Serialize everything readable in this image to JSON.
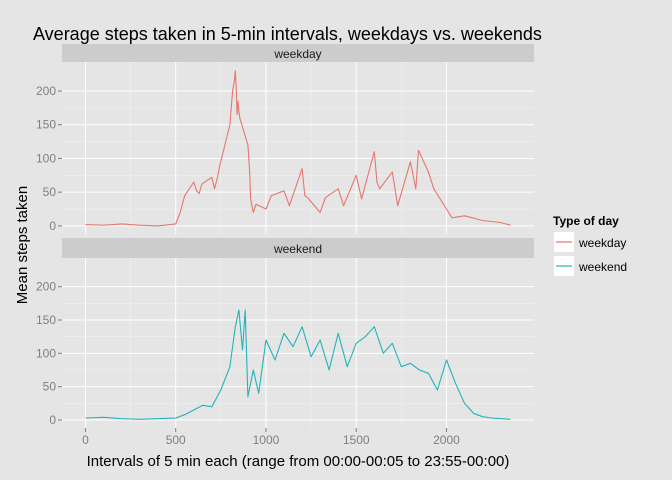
{
  "chart_data": {
    "type": "line",
    "title": "Average steps taken in 5-min intervals, weekdays vs. weekends",
    "xlabel": "Intervals of 5 min each (range from 00:00-00:05 to 23:55-00:00)",
    "ylabel": "Mean steps taken",
    "xlim": [
      -130,
      2485
    ],
    "ylim": [
      -12,
      243
    ],
    "x_ticks": [
      0,
      500,
      1000,
      1500,
      2000
    ],
    "x_tick_labels": [
      "0",
      "500",
      "1000",
      "1500",
      "2000"
    ],
    "y_ticks": [
      0,
      50,
      100,
      150,
      200
    ],
    "y_tick_labels": [
      "0",
      "50",
      "100",
      "150",
      "200"
    ],
    "grid": true,
    "legend": {
      "title": "Type of day",
      "position": "right",
      "entries": [
        "weekday",
        "weekend"
      ]
    },
    "colors": {
      "weekday": "#e8766d",
      "weekend": "#1fb5b9"
    },
    "panels": [
      {
        "strip_label": "weekday",
        "series": "weekday",
        "x": [
          0,
          100,
          200,
          300,
          400,
          500,
          525,
          550,
          600,
          615,
          630,
          645,
          700,
          715,
          730,
          745,
          800,
          815,
          825,
          830,
          835,
          840,
          845,
          850,
          855,
          900,
          910,
          915,
          930,
          945,
          1000,
          1030,
          1100,
          1130,
          1200,
          1215,
          1230,
          1300,
          1330,
          1400,
          1430,
          1500,
          1530,
          1600,
          1615,
          1630,
          1700,
          1730,
          1800,
          1830,
          1845,
          1900,
          1930,
          2000,
          2030,
          2100,
          2200,
          2300,
          2355
        ],
        "y": [
          2,
          1,
          3,
          1,
          0,
          3,
          20,
          45,
          65,
          52,
          48,
          62,
          72,
          55,
          70,
          90,
          150,
          200,
          215,
          230,
          206,
          165,
          185,
          170,
          160,
          120,
          80,
          40,
          20,
          32,
          25,
          45,
          52,
          30,
          85,
          45,
          42,
          20,
          42,
          55,
          30,
          75,
          40,
          110,
          65,
          55,
          80,
          30,
          95,
          55,
          112,
          80,
          55,
          25,
          12,
          15,
          8,
          5,
          1
        ]
      },
      {
        "strip_label": "weekend",
        "series": "weekend",
        "x": [
          0,
          100,
          200,
          300,
          400,
          500,
          550,
          600,
          650,
          700,
          750,
          800,
          830,
          850,
          870,
          885,
          900,
          930,
          960,
          1000,
          1050,
          1100,
          1150,
          1200,
          1250,
          1300,
          1350,
          1400,
          1450,
          1500,
          1550,
          1600,
          1650,
          1700,
          1750,
          1800,
          1850,
          1900,
          1950,
          2000,
          2050,
          2100,
          2150,
          2200,
          2250,
          2300,
          2355
        ],
        "y": [
          3,
          4,
          2,
          1,
          2,
          3,
          8,
          15,
          22,
          20,
          45,
          80,
          140,
          165,
          105,
          165,
          35,
          75,
          40,
          120,
          90,
          130,
          110,
          140,
          95,
          120,
          75,
          130,
          80,
          115,
          125,
          140,
          100,
          115,
          80,
          85,
          75,
          70,
          45,
          90,
          55,
          25,
          10,
          5,
          3,
          2,
          1
        ]
      }
    ]
  }
}
